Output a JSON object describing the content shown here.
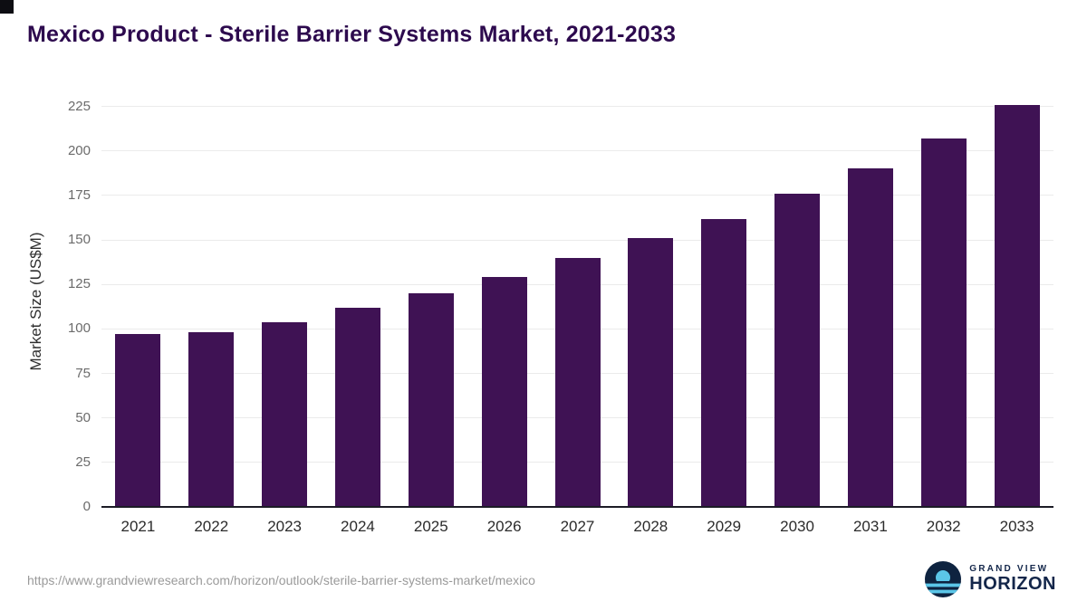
{
  "title": "Mexico Product - Sterile Barrier Systems Market, 2021-2033",
  "chart_data": {
    "type": "bar",
    "title": "Mexico Product - Sterile Barrier Systems Market, 2021-2033",
    "categories": [
      "2021",
      "2022",
      "2023",
      "2024",
      "2025",
      "2026",
      "2027",
      "2028",
      "2029",
      "2030",
      "2031",
      "2032",
      "2033"
    ],
    "values": [
      97,
      98,
      104,
      112,
      120,
      129,
      140,
      151,
      162,
      176,
      190,
      207,
      226
    ],
    "xlabel": "",
    "ylabel": "Market Size (US$M)",
    "ylim": [
      0,
      235
    ],
    "yticks": [
      0,
      25,
      50,
      75,
      100,
      125,
      150,
      175,
      200,
      225
    ],
    "grid": true,
    "legend": "none",
    "bar_color": "#3f1254"
  },
  "footer": {
    "source_url": "https://www.grandviewresearch.com/horizon/outlook/sterile-barrier-systems-market/mexico",
    "logo": {
      "line1": "GRAND VIEW",
      "line2": "HORIZON"
    }
  },
  "colors": {
    "title": "#2d0a4e",
    "bar": "#3f1254",
    "gridline": "#ebebeb",
    "axis": "#1c1c26",
    "logo_navy": "#0e2340",
    "logo_blue": "#5bc6e8"
  }
}
